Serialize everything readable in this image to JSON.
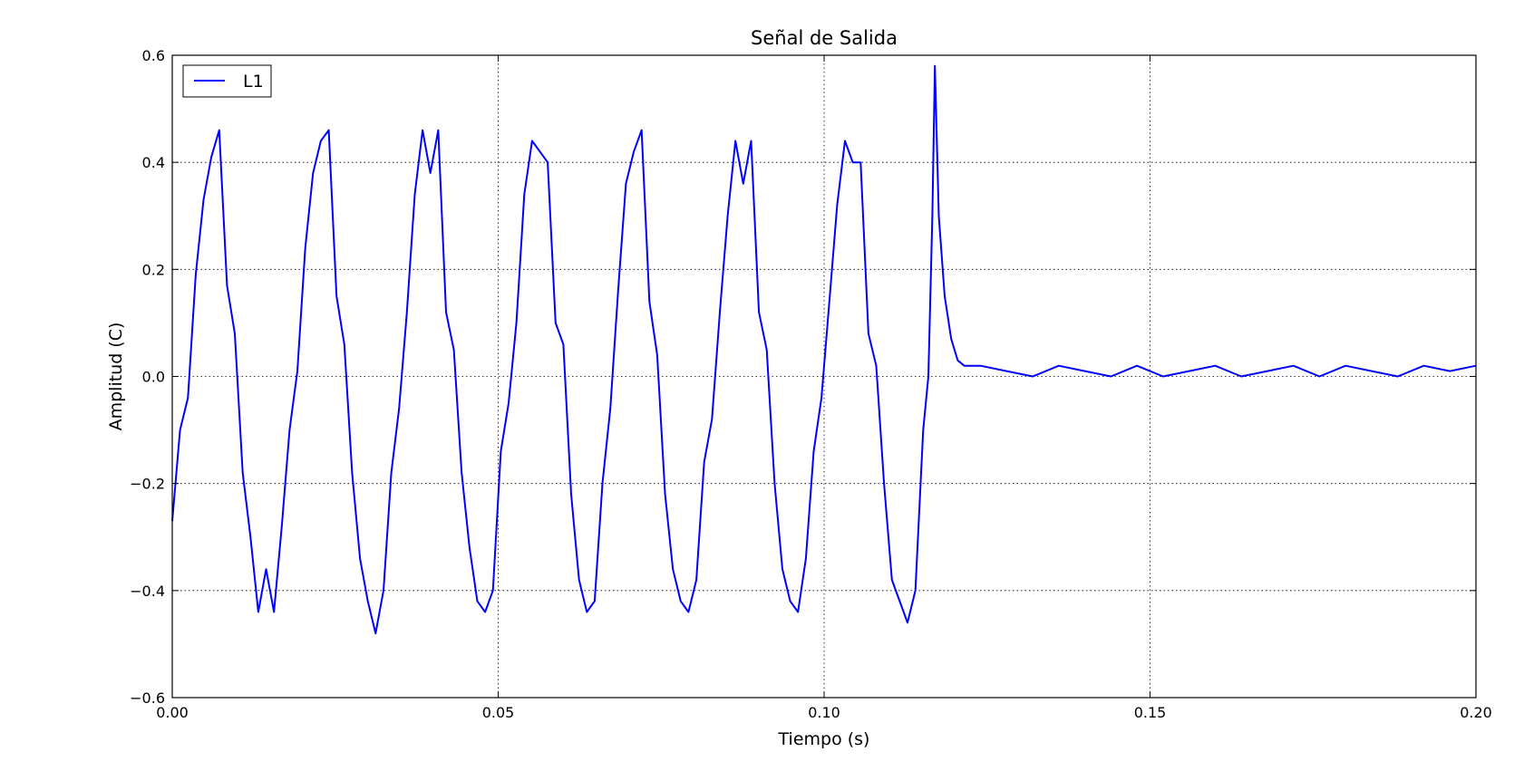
{
  "chart_data": {
    "type": "line",
    "title": "Señal de Salida",
    "xlabel": "Tiempo (s)",
    "ylabel": "Amplitud (C)",
    "xlim": [
      0.0,
      0.2
    ],
    "ylim": [
      -0.6,
      0.6
    ],
    "xticks": [
      0.0,
      0.05,
      0.1,
      0.15,
      0.2
    ],
    "xtick_labels": [
      "0.00",
      "0.05",
      "0.10",
      "0.15",
      "0.20"
    ],
    "yticks": [
      -0.6,
      -0.4,
      -0.2,
      0.0,
      0.2,
      0.4,
      0.6
    ],
    "ytick_labels": [
      "−0.6",
      "−0.4",
      "−0.2",
      "0.0",
      "0.2",
      "0.4",
      "0.6"
    ],
    "grid": true,
    "grid_style": "dotted",
    "legend_position": "top-left",
    "series": [
      {
        "name": "L1",
        "color": "#0000ff",
        "x": [
          0.0,
          0.0012,
          0.0024,
          0.0036,
          0.0048,
          0.006,
          0.0072,
          0.0084,
          0.0096,
          0.0108,
          0.012,
          0.0132,
          0.0144,
          0.0156,
          0.0168,
          0.018,
          0.0192,
          0.0204,
          0.0216,
          0.0228,
          0.024,
          0.0252,
          0.0264,
          0.0276,
          0.0288,
          0.03,
          0.0312,
          0.0324,
          0.0336,
          0.0348,
          0.036,
          0.0372,
          0.0384,
          0.0396,
          0.0408,
          0.042,
          0.0432,
          0.0444,
          0.0456,
          0.0468,
          0.048,
          0.0492,
          0.0504,
          0.0516,
          0.0528,
          0.054,
          0.0552,
          0.0564,
          0.0576,
          0.0588,
          0.06,
          0.0612,
          0.0624,
          0.0636,
          0.0648,
          0.066,
          0.0672,
          0.0684,
          0.0696,
          0.0708,
          0.072,
          0.0732,
          0.0744,
          0.0756,
          0.0768,
          0.078,
          0.0792,
          0.0804,
          0.0816,
          0.0828,
          0.084,
          0.0852,
          0.0864,
          0.0876,
          0.0888,
          0.09,
          0.0912,
          0.0924,
          0.0936,
          0.0948,
          0.096,
          0.0972,
          0.0984,
          0.0996,
          0.1008,
          0.102,
          0.1032,
          0.1044,
          0.1056,
          0.1068,
          0.108,
          0.1092,
          0.1104,
          0.1116,
          0.1128,
          0.114,
          0.1152,
          0.116,
          0.1166,
          0.117,
          0.1176,
          0.1185,
          0.1195,
          0.1205,
          0.1215,
          0.1225,
          0.124,
          0.128,
          0.132,
          0.136,
          0.14,
          0.144,
          0.148,
          0.152,
          0.156,
          0.16,
          0.164,
          0.168,
          0.172,
          0.176,
          0.18,
          0.184,
          0.188,
          0.192,
          0.196,
          0.2
        ],
        "y": [
          -0.27,
          -0.1,
          -0.04,
          0.19,
          0.33,
          0.41,
          0.46,
          0.17,
          0.08,
          -0.18,
          -0.3,
          -0.44,
          -0.36,
          -0.44,
          -0.28,
          -0.1,
          0.01,
          0.24,
          0.38,
          0.44,
          0.46,
          0.15,
          0.06,
          -0.18,
          -0.34,
          -0.42,
          -0.48,
          -0.4,
          -0.18,
          -0.06,
          0.12,
          0.34,
          0.46,
          0.38,
          0.46,
          0.12,
          0.05,
          -0.18,
          -0.32,
          -0.42,
          -0.44,
          -0.4,
          -0.14,
          -0.05,
          0.1,
          0.34,
          0.44,
          0.42,
          0.4,
          0.1,
          0.06,
          -0.22,
          -0.38,
          -0.44,
          -0.42,
          -0.2,
          -0.06,
          0.16,
          0.36,
          0.42,
          0.46,
          0.14,
          0.04,
          -0.22,
          -0.36,
          -0.42,
          -0.44,
          -0.38,
          -0.16,
          -0.08,
          0.12,
          0.3,
          0.44,
          0.36,
          0.44,
          0.12,
          0.05,
          -0.2,
          -0.36,
          -0.42,
          -0.44,
          -0.34,
          -0.14,
          -0.04,
          0.14,
          0.32,
          0.44,
          0.4,
          0.4,
          0.08,
          0.02,
          -0.2,
          -0.38,
          -0.42,
          -0.46,
          -0.4,
          -0.1,
          0.0,
          0.3,
          0.58,
          0.3,
          0.15,
          0.07,
          0.03,
          0.02,
          0.02,
          0.02,
          0.01,
          0.0,
          0.02,
          0.01,
          0.0,
          0.02,
          0.0,
          0.01,
          0.02,
          0.0,
          0.01,
          0.02,
          0.0,
          0.02,
          0.01,
          0.0,
          0.02,
          0.01,
          0.02
        ]
      }
    ]
  }
}
